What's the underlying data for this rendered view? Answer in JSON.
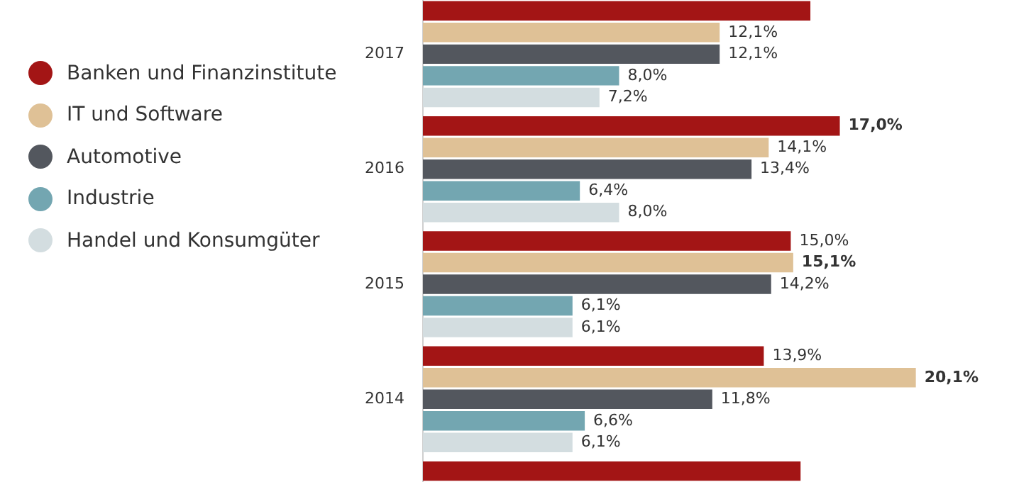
{
  "chart_data": {
    "type": "bar",
    "orientation": "horizontal",
    "categories": [
      "2017",
      "2016",
      "2015",
      "2014",
      null
    ],
    "tick_labels": "y",
    "grid": false,
    "legend": "left",
    "series": [
      {
        "name": "Banken und Finanzinstitute",
        "color": "#a31515",
        "values": [
          15.8,
          17.0,
          15.0,
          13.9,
          15.4
        ],
        "value_labels": [
          null,
          "17,0%",
          "15,0%",
          "13,9%",
          null
        ]
      },
      {
        "name": "IT und Software",
        "color": "#dfc196",
        "values": [
          12.1,
          14.1,
          15.1,
          20.1,
          null
        ],
        "value_labels": [
          "12,1%",
          "14,1%",
          "15,1%",
          "20,1%",
          null
        ]
      },
      {
        "name": "Automotive",
        "color": "#53575e",
        "values": [
          12.1,
          13.4,
          14.2,
          11.8,
          null
        ],
        "value_labels": [
          "12,1%",
          "13,4%",
          "14,2%",
          "11,8%",
          null
        ]
      },
      {
        "name": "Industrie",
        "color": "#73a6b1",
        "values": [
          8.0,
          6.4,
          6.1,
          6.6,
          null
        ],
        "value_labels": [
          "8,0%",
          "6,4%",
          "6,1%",
          "6,6%",
          null
        ]
      },
      {
        "name": "Handel und Konsumgüter",
        "color": "#d3dde0",
        "values": [
          7.2,
          8.0,
          6.1,
          6.1,
          null
        ],
        "value_labels": [
          "7,2%",
          "8,0%",
          "6,1%",
          "6,1%",
          null
        ]
      }
    ]
  }
}
